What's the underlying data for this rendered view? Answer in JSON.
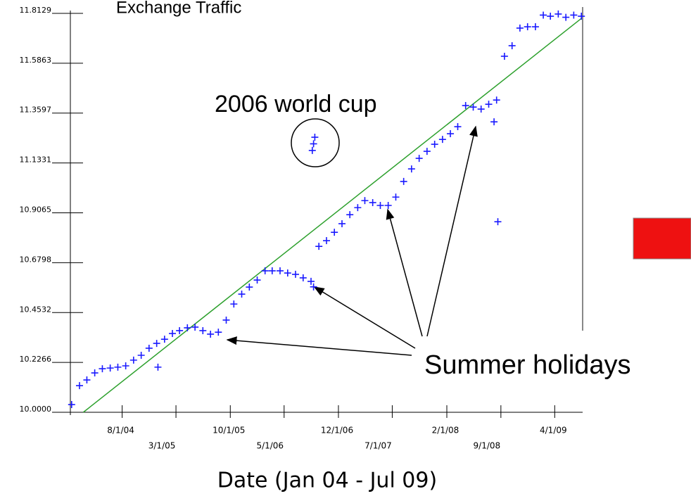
{
  "chart_data": {
    "type": "scatter",
    "title": "Exchange Traffic",
    "x_label": "Date (Jan 04 - Jul 09)",
    "annotations": [
      "2006 world cup",
      "Summer holidays"
    ],
    "xlim": [
      "2004-01-10",
      "2009-07-20"
    ],
    "xticks": [
      {
        "value": "2004-08-01",
        "label": "8/1/04"
      },
      {
        "value": "2005-03-01",
        "label": "3/1/05"
      },
      {
        "value": "2005-10-01",
        "label": "10/1/05"
      },
      {
        "value": "2006-05-01",
        "label": "5/1/06"
      },
      {
        "value": "2006-12-01",
        "label": "12/1/06"
      },
      {
        "value": "2007-07-01",
        "label": "7/1/07"
      },
      {
        "value": "2008-02-01",
        "label": "2/1/08"
      },
      {
        "value": "2008-09-01",
        "label": "9/1/08"
      },
      {
        "value": "2009-04-01",
        "label": "4/1/09"
      }
    ],
    "ylim": [
      10,
      11.8129
    ],
    "yticks": [
      {
        "value": 10,
        "label": "10.0000"
      },
      10.2266,
      10.4532,
      10.6798,
      10.9065,
      11.1331,
      11.3597,
      11.5863,
      11.8129
    ],
    "color": "#1a1aff",
    "x": [
      "2004-01-15",
      "2004-02-15",
      "2004-03-15",
      "2004-04-15",
      "2004-05-15",
      "2004-06-15",
      "2004-07-15",
      "2004-08-15",
      "2004-09-15",
      "2004-10-15",
      "2004-11-15",
      "2004-12-15",
      "2005-01-15",
      "2005-02-15",
      "2005-03-15",
      "2005-04-15",
      "2005-05-15",
      "2005-06-15",
      "2005-07-15",
      "2005-08-15",
      "2005-09-15",
      "2005-10-15",
      "2005-11-15",
      "2005-12-15",
      "2006-01-15",
      "2006-02-15",
      "2006-03-15",
      "2006-04-15",
      "2006-05-15",
      "2006-06-15",
      "2006-07-15",
      "2006-08-15",
      "2006-09-15",
      "2006-10-15",
      "2006-11-15",
      "2006-12-15",
      "2007-01-15",
      "2007-02-15",
      "2007-03-15",
      "2007-04-15",
      "2007-05-15",
      "2007-06-15",
      "2007-07-15",
      "2007-08-15",
      "2007-09-15",
      "2007-10-15",
      "2007-11-15",
      "2007-12-15",
      "2008-01-15",
      "2008-02-15",
      "2008-03-15",
      "2008-04-15",
      "2008-05-15",
      "2008-06-15",
      "2008-07-15",
      "2008-08-15",
      "2008-09-15",
      "2008-10-15",
      "2008-11-15",
      "2008-12-15",
      "2009-01-15",
      "2009-02-15",
      "2009-03-15",
      "2009-04-15",
      "2009-05-15",
      "2009-06-15",
      "2009-07-15",
      "2006-08-20",
      "2006-08-25",
      "2006-08-30",
      "2008-08-20",
      "2004-12-20",
      "2006-08-25",
      "2008-08-05"
    ],
    "values": [
      10.035,
      10.121,
      10.147,
      10.179,
      10.198,
      10.201,
      10.205,
      10.211,
      10.237,
      10.259,
      10.291,
      10.313,
      10.332,
      10.358,
      10.371,
      10.384,
      10.387,
      10.371,
      10.355,
      10.364,
      10.419,
      10.492,
      10.537,
      10.569,
      10.601,
      10.643,
      10.643,
      10.643,
      10.633,
      10.627,
      10.611,
      10.595,
      10.754,
      10.78,
      10.818,
      10.857,
      10.898,
      10.93,
      10.962,
      10.953,
      10.94,
      10.94,
      10.978,
      11.049,
      11.106,
      11.154,
      11.186,
      11.218,
      11.24,
      11.266,
      11.298,
      11.394,
      11.387,
      11.378,
      11.4,
      11.419,
      11.618,
      11.666,
      11.746,
      11.752,
      11.752,
      11.805,
      11.8,
      11.81,
      11.795,
      11.805,
      11.8,
      11.19,
      11.22,
      11.25,
      10.866,
      10.205,
      10.57,
      11.32
    ],
    "trend": {
      "x": [
        "2004-03-01",
        "2009-07-15"
      ],
      "y": [
        10.0,
        11.79
      ],
      "color": "#2ca02c"
    }
  }
}
